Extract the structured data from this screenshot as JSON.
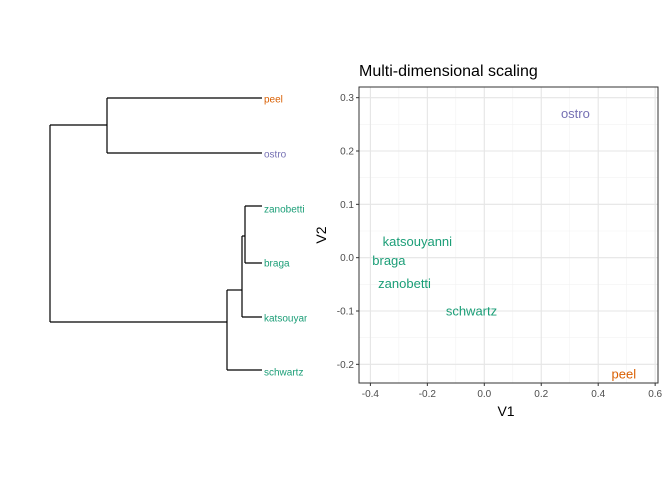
{
  "colors": {
    "group_orange": "#d95f02",
    "group_purple": "#7570b3",
    "group_green": "#1b9e77",
    "grid_major": "#e5e5e5",
    "grid_minor": "#f2f2f2",
    "panel_border": "#333333"
  },
  "dendrogram": {
    "leaves": [
      {
        "label": "peel",
        "color": "#d95f02"
      },
      {
        "label": "ostro",
        "color": "#7570b3"
      },
      {
        "label": "zanobetti",
        "color": "#1b9e77"
      },
      {
        "label": "braga",
        "color": "#1b9e77"
      },
      {
        "label": "katsouyanni",
        "color": "#1b9e77"
      },
      {
        "label": "schwartz",
        "color": "#1b9e77"
      }
    ]
  },
  "chart_data": {
    "type": "scatter",
    "title": "Multi-dimensional scaling",
    "xlabel": "V1",
    "ylabel": "V2",
    "xlim": [
      -0.44,
      0.61
    ],
    "ylim": [
      -0.235,
      0.32
    ],
    "x_ticks": [
      "-0.4",
      "-0.2",
      "0.0",
      "0.2",
      "0.4",
      "0.6"
    ],
    "x_tick_values": [
      -0.4,
      -0.2,
      0.0,
      0.2,
      0.4,
      0.6
    ],
    "y_ticks": [
      "-0.2",
      "-0.1",
      "0.0",
      "0.1",
      "0.2",
      "0.3"
    ],
    "y_tick_values": [
      -0.2,
      -0.1,
      0.0,
      0.1,
      0.2,
      0.3
    ],
    "grid": true,
    "points": [
      {
        "label": "ostro",
        "x": 0.32,
        "y": 0.27,
        "color": "#7570b3"
      },
      {
        "label": "katsouyanni",
        "x": -0.235,
        "y": 0.03,
        "color": "#1b9e77"
      },
      {
        "label": "braga",
        "x": -0.335,
        "y": -0.005,
        "color": "#1b9e77"
      },
      {
        "label": "zanobetti",
        "x": -0.28,
        "y": -0.048,
        "color": "#1b9e77"
      },
      {
        "label": "schwartz",
        "x": -0.045,
        "y": -0.1,
        "color": "#1b9e77"
      },
      {
        "label": "peel",
        "x": 0.49,
        "y": -0.218,
        "color": "#d95f02"
      }
    ]
  }
}
